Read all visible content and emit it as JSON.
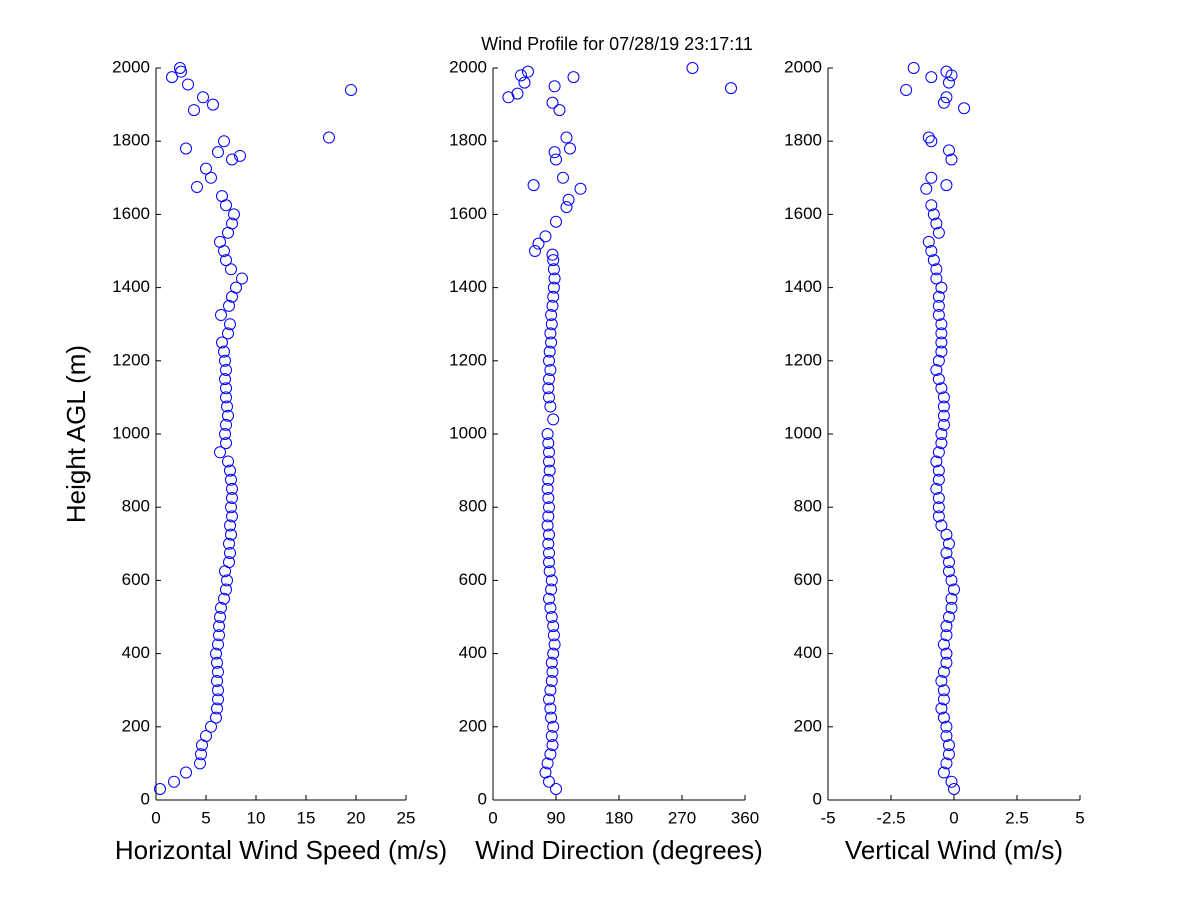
{
  "chart_data": [
    {
      "type": "scatter",
      "title": "Wind Profile for  07/28/19 23:17:11",
      "y_label": "Height AGL (m)",
      "x_label": "Horizontal Wind Speed (m/s)",
      "color": "#0000ff",
      "xlim": [
        0,
        25
      ],
      "xticks": [
        0,
        5,
        10,
        15,
        20,
        25
      ],
      "ylim": [
        0,
        2000
      ],
      "yticks": [
        0,
        200,
        400,
        600,
        800,
        1000,
        1200,
        1400,
        1600,
        1800,
        2000
      ],
      "x": [
        0.4,
        1.8,
        3.0,
        4.4,
        4.5,
        4.6,
        5.0,
        5.5,
        6.0,
        6.1,
        6.2,
        6.2,
        6.1,
        6.2,
        6.1,
        6.0,
        6.2,
        6.3,
        6.3,
        6.4,
        6.5,
        6.8,
        7.0,
        7.1,
        6.9,
        7.3,
        7.4,
        7.3,
        7.5,
        7.4,
        7.6,
        7.5,
        7.6,
        7.6,
        7.5,
        7.4,
        7.2,
        6.4,
        7.0,
        6.9,
        7.0,
        7.2,
        7.1,
        7.0,
        7.0,
        6.9,
        7.0,
        6.9,
        6.8,
        6.6,
        7.2,
        7.4,
        6.5,
        7.3,
        7.6,
        8.0,
        8.6,
        7.5,
        7.0,
        6.8,
        6.4,
        7.2,
        7.6,
        7.8,
        7.0,
        6.6,
        4.1,
        5.5,
        5.0,
        7.6,
        6.2,
        3.0,
        6.8,
        8.4,
        17.3,
        3.8,
        5.7,
        4.7,
        19.5,
        3.2,
        1.6,
        2.5,
        2.4
      ],
      "y": [
        30,
        50,
        75,
        100,
        125,
        150,
        175,
        200,
        225,
        250,
        275,
        300,
        325,
        350,
        375,
        400,
        425,
        450,
        475,
        500,
        525,
        550,
        575,
        600,
        625,
        650,
        675,
        700,
        725,
        750,
        775,
        800,
        825,
        850,
        875,
        900,
        925,
        950,
        975,
        1000,
        1025,
        1050,
        1075,
        1100,
        1125,
        1150,
        1175,
        1200,
        1225,
        1250,
        1275,
        1300,
        1325,
        1350,
        1375,
        1400,
        1425,
        1450,
        1475,
        1500,
        1525,
        1550,
        1575,
        1600,
        1625,
        1650,
        1675,
        1700,
        1725,
        1750,
        1770,
        1780,
        1800,
        1760,
        1810,
        1885,
        1900,
        1920,
        1940,
        1955,
        1975,
        1990,
        2000
      ]
    },
    {
      "type": "scatter",
      "x_label": "Wind Direction (degrees)",
      "color": "#0000ff",
      "xlim": [
        0,
        360
      ],
      "xticks": [
        0,
        90,
        180,
        270,
        360
      ],
      "ylim": [
        0,
        2000
      ],
      "yticks": [
        0,
        200,
        400,
        600,
        800,
        1000,
        1200,
        1400,
        1600,
        1800,
        2000
      ],
      "x": [
        90,
        80,
        75,
        78,
        82,
        85,
        84,
        86,
        83,
        82,
        80,
        82,
        84,
        85,
        84,
        86,
        88,
        87,
        86,
        84,
        82,
        80,
        83,
        84,
        81,
        80,
        80,
        79,
        80,
        78,
        79,
        80,
        79,
        78,
        79,
        81,
        80,
        80,
        79,
        78,
        86,
        82,
        80,
        79,
        80,
        82,
        80,
        81,
        83,
        82,
        84,
        83,
        85,
        86,
        87,
        88,
        87,
        86,
        85,
        60,
        65,
        75,
        90,
        105,
        108,
        125,
        58,
        100,
        90,
        88,
        110,
        105,
        95,
        85,
        22,
        35,
        340,
        45,
        115,
        40,
        50,
        285,
        88
      ],
      "y": [
        30,
        50,
        75,
        100,
        125,
        150,
        175,
        200,
        225,
        250,
        275,
        300,
        325,
        350,
        375,
        400,
        425,
        450,
        475,
        500,
        525,
        550,
        575,
        600,
        625,
        650,
        675,
        700,
        725,
        750,
        775,
        800,
        825,
        850,
        875,
        900,
        925,
        950,
        975,
        1000,
        1040,
        1075,
        1100,
        1125,
        1150,
        1175,
        1200,
        1225,
        1250,
        1275,
        1300,
        1325,
        1350,
        1375,
        1400,
        1425,
        1450,
        1475,
        1490,
        1500,
        1520,
        1540,
        1580,
        1620,
        1640,
        1670,
        1680,
        1700,
        1750,
        1770,
        1780,
        1810,
        1885,
        1905,
        1920,
        1930,
        1945,
        1960,
        1975,
        1980,
        1990,
        2000,
        1950
      ]
    },
    {
      "type": "scatter",
      "x_label": "Vertical Wind (m/s)",
      "color": "#0000ff",
      "xlim": [
        -5,
        5
      ],
      "xticks": [
        -5,
        -2.5,
        0,
        2.5,
        5
      ],
      "ylim": [
        0,
        2000
      ],
      "yticks": [
        0,
        200,
        400,
        600,
        800,
        1000,
        1200,
        1400,
        1600,
        1800,
        2000
      ],
      "x": [
        0.0,
        -0.1,
        -0.4,
        -0.3,
        -0.2,
        -0.2,
        -0.3,
        -0.3,
        -0.4,
        -0.5,
        -0.4,
        -0.4,
        -0.5,
        -0.4,
        -0.3,
        -0.3,
        -0.4,
        -0.3,
        -0.3,
        -0.2,
        -0.1,
        -0.1,
        0.0,
        -0.1,
        -0.2,
        -0.2,
        -0.3,
        -0.2,
        -0.3,
        -0.5,
        -0.6,
        -0.6,
        -0.6,
        -0.7,
        -0.6,
        -0.6,
        -0.7,
        -0.6,
        -0.5,
        -0.5,
        -0.4,
        -0.4,
        -0.4,
        -0.4,
        -0.5,
        -0.6,
        -0.7,
        -0.6,
        -0.5,
        -0.5,
        -0.5,
        -0.5,
        -0.6,
        -0.6,
        -0.6,
        -0.5,
        -0.7,
        -0.7,
        -0.8,
        -0.9,
        -1.0,
        -0.6,
        -0.7,
        -0.8,
        -0.9,
        -1.1,
        -0.3,
        -0.9,
        -0.1,
        -0.2,
        -0.9,
        -1.0,
        -1.9,
        -0.3,
        0.4,
        -0.4,
        -0.2,
        -0.9,
        -0.1,
        -0.3,
        -1.6
      ],
      "y": [
        30,
        50,
        75,
        100,
        125,
        150,
        175,
        200,
        225,
        250,
        275,
        300,
        325,
        350,
        375,
        400,
        425,
        450,
        475,
        500,
        525,
        550,
        575,
        600,
        625,
        650,
        675,
        700,
        725,
        750,
        775,
        800,
        825,
        850,
        875,
        900,
        925,
        950,
        975,
        1000,
        1025,
        1050,
        1075,
        1100,
        1125,
        1150,
        1175,
        1200,
        1225,
        1250,
        1275,
        1300,
        1325,
        1350,
        1375,
        1400,
        1425,
        1450,
        1475,
        1500,
        1525,
        1550,
        1575,
        1600,
        1625,
        1670,
        1680,
        1700,
        1750,
        1775,
        1800,
        1810,
        1940,
        1990,
        1890,
        1905,
        1960,
        1975,
        1980,
        1920,
        2000
      ]
    }
  ]
}
